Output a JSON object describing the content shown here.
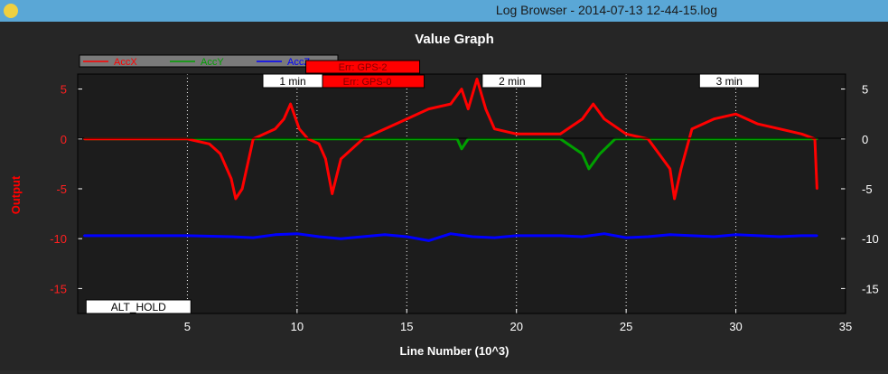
{
  "window": {
    "title": "Log Browser - 2014-07-13 12-44-15.log"
  },
  "chart_data": {
    "type": "line",
    "title": "Value Graph",
    "xlabel": "Line Number (10^3)",
    "ylabel": "Output",
    "xlim": [
      0,
      35
    ],
    "ylim": [
      -17.5,
      6.5
    ],
    "x_ticks": [
      5,
      10,
      15,
      20,
      25,
      30,
      35
    ],
    "y_ticks": [
      5,
      0,
      -5,
      -10,
      -15
    ],
    "grid": "x-dotted",
    "legend_position": "top-left",
    "series": [
      {
        "name": "AccX",
        "color": "#ff0000",
        "x": [
          0.3,
          2.8,
          3.2,
          5,
          6,
          6.5,
          7,
          7.2,
          7.5,
          8,
          9,
          9.4,
          9.7,
          10.1,
          10.5,
          11,
          11.3,
          11.6,
          12,
          13,
          14,
          15,
          16,
          17,
          17.5,
          17.8,
          18.2,
          18.6,
          19,
          20,
          22,
          23,
          23.5,
          24,
          25,
          26,
          27,
          27.2,
          27.5,
          28,
          29,
          30,
          31,
          32,
          33,
          33.6,
          33.7
        ],
        "y": [
          0,
          0,
          0,
          0,
          -0.5,
          -1.5,
          -4,
          -6,
          -5,
          0,
          1,
          2,
          3.5,
          1,
          0,
          -0.5,
          -2,
          -5.5,
          -2,
          0,
          1,
          2,
          3,
          3.5,
          5,
          3,
          6,
          3,
          1,
          0.5,
          0.5,
          2,
          3.5,
          2,
          0.5,
          0,
          -3,
          -6,
          -3,
          1,
          2,
          2.5,
          1.5,
          1,
          0.5,
          0,
          -5
        ]
      },
      {
        "name": "AccY",
        "color": "#00a000",
        "x": [
          0.3,
          2.8,
          3.2,
          6,
          8,
          10,
          12,
          14,
          16,
          17.3,
          17.5,
          17.8,
          19,
          22,
          23,
          23.3,
          23.8,
          24.5,
          26,
          28,
          30,
          32,
          33.7
        ],
        "y": [
          0,
          0,
          0,
          0,
          0,
          0,
          0,
          0,
          0,
          0,
          -1,
          0,
          0,
          0,
          -1.5,
          -3,
          -1.5,
          0,
          0,
          0,
          0,
          0,
          0
        ]
      },
      {
        "name": "AccZ",
        "color": "#0000ff",
        "x": [
          0.3,
          2.8,
          3.2,
          5,
          7,
          8,
          9,
          10,
          11,
          12,
          13,
          14,
          15,
          16,
          17,
          18,
          19,
          20,
          22,
          23,
          24,
          25,
          26,
          27,
          28,
          29,
          30,
          31,
          32,
          33,
          33.7
        ],
        "y": [
          -9.7,
          -9.7,
          -9.7,
          -9.7,
          -9.8,
          -9.9,
          -9.6,
          -9.5,
          -9.8,
          -10,
          -9.8,
          -9.6,
          -9.8,
          -10.2,
          -9.5,
          -9.8,
          -9.9,
          -9.7,
          -9.7,
          -9.8,
          -9.5,
          -9.9,
          -9.8,
          -9.6,
          -9.7,
          -9.8,
          -9.6,
          -9.7,
          -9.8,
          -9.7,
          -9.7
        ]
      }
    ],
    "annotations": {
      "time_markers": [
        {
          "label": "1 min",
          "x": 9.8
        },
        {
          "label": "2 min",
          "x": 19.8
        },
        {
          "label": "3 min",
          "x": 29.7
        }
      ],
      "errors": [
        {
          "label": "Err: GPS-2",
          "x": 13.2
        },
        {
          "label": "Err: GPS-0",
          "x": 13.2
        }
      ],
      "mode_label": {
        "label": "ALT_HOLD",
        "x": 0.3
      }
    }
  }
}
